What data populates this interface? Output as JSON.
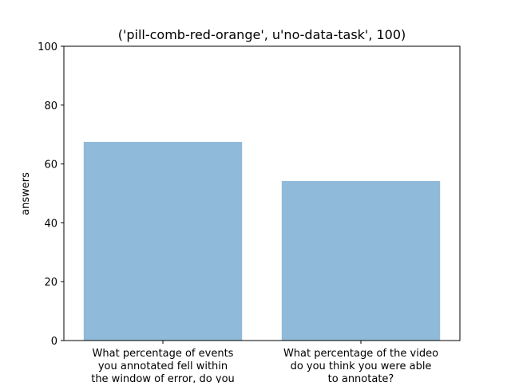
{
  "chart_data": {
    "type": "bar",
    "title": "('pill-comb-red-orange', u'no-data-task', 100)",
    "xlabel": "",
    "ylabel": "answers",
    "categories": [
      "What percentage of events you annotated fell within the window of error, do you",
      "What percentage of the video do you think you were able to annotate?"
    ],
    "category_label_lines": [
      [
        "What percentage of events",
        "you annotated fell within",
        "the window of error, do you"
      ],
      [
        "What percentage of the video",
        "do you think you were able",
        "to annotate?"
      ]
    ],
    "values": [
      67.5,
      54.2
    ],
    "ylim": [
      0,
      100
    ],
    "yticks": [
      0,
      20,
      40,
      60,
      80,
      100
    ],
    "bar_color": "#8fbad9",
    "grid": false,
    "legend": "none"
  }
}
